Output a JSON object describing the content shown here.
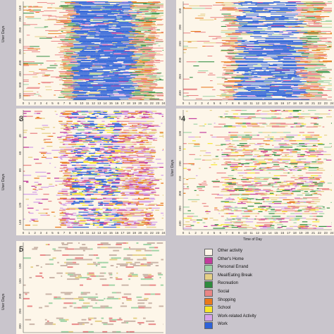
{
  "panels": [
    {
      "id": "p1",
      "number": "",
      "ylabel": "User Days",
      "xlabel": "",
      "yticks": [
        "150",
        "200",
        "250",
        "300",
        "350",
        "400",
        "450",
        "500",
        "550"
      ],
      "density": 0.9,
      "profile": "work",
      "rows": 130
    },
    {
      "id": "p2",
      "number": "",
      "ylabel": "",
      "xlabel": "",
      "yticks": [
        "150",
        "200",
        "250",
        "300",
        "350",
        "400"
      ],
      "density": 0.8,
      "profile": "work",
      "rows": 120
    },
    {
      "id": "p3",
      "number": "3",
      "ylabel": "User Days",
      "xlabel": "",
      "yticks": [
        "20",
        "40",
        "60",
        "80",
        "100",
        "120",
        "140"
      ],
      "density": 0.7,
      "profile": "school",
      "rows": 120
    },
    {
      "id": "p4",
      "number": "4",
      "ylabel": "User Days",
      "xlabel": "Time of Day",
      "yticks": [
        "50",
        "100",
        "150",
        "200",
        "250",
        "300",
        "350",
        "400"
      ],
      "density": 0.55,
      "profile": "mixed",
      "rows": 130
    },
    {
      "id": "p5",
      "number": "5",
      "ylabel": "User Days",
      "xlabel": "",
      "yticks": [
        "50",
        "100",
        "150",
        "200",
        "250",
        "300"
      ],
      "density": 0.35,
      "profile": "sparse",
      "rows": 60
    }
  ],
  "xticks": [
    "0",
    "1",
    "2",
    "3",
    "4",
    "5",
    "6",
    "7",
    "8",
    "9",
    "10",
    "11",
    "12",
    "13",
    "14",
    "15",
    "16",
    "17",
    "18",
    "19",
    "20",
    "21",
    "22",
    "23",
    "24"
  ],
  "legend": [
    {
      "label": "Other activity",
      "color": "#fdf6e9"
    },
    {
      "label": "Other's Home",
      "color": "#c23b9c"
    },
    {
      "label": "Personal Errand",
      "color": "#9fd3a5"
    },
    {
      "label": "Meal/Eating Break",
      "color": "#e5cf86"
    },
    {
      "label": "Recreation",
      "color": "#2e8b3e"
    },
    {
      "label": "Social",
      "color": "#e98686"
    },
    {
      "label": "Shopping",
      "color": "#e9791c"
    },
    {
      "label": "School",
      "color": "#f7e72a"
    },
    {
      "label": "Work-related Activity",
      "color": "#d5a2e8"
    },
    {
      "label": "Work",
      "color": "#2d62d8"
    }
  ],
  "chart_data": {
    "type": "heatmap",
    "x_axis": {
      "range": [
        0,
        24
      ],
      "unit": "hour"
    },
    "series": []
  }
}
